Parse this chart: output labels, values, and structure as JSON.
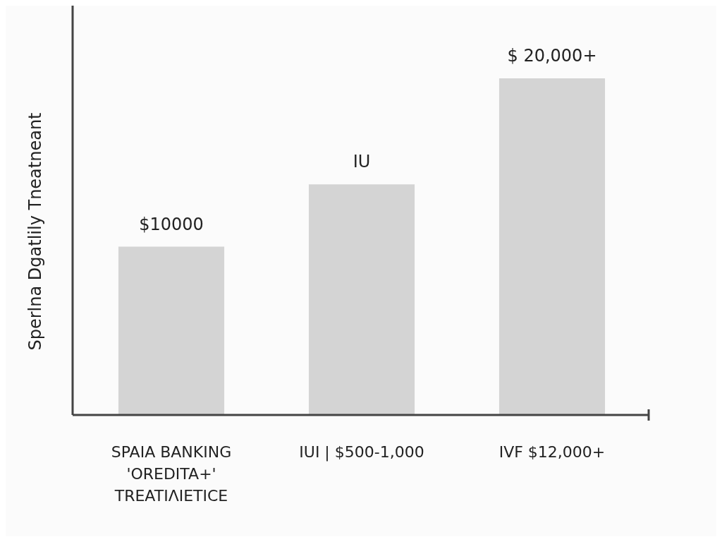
{
  "chart_data": {
    "type": "bar",
    "ylabel": "Sperlna Dgatlily Tneatneant",
    "categories": [
      "SPAIA BANKING\n'OREDITA+'\nTREATIΛIETICE",
      "IUI | $500-1,000",
      "IVF $12,000+"
    ],
    "values": [
      10000,
      13700,
      20000
    ],
    "value_labels": [
      "$10000",
      "IU",
      "$ 20,000+"
    ],
    "color": "#d4d4d4"
  }
}
